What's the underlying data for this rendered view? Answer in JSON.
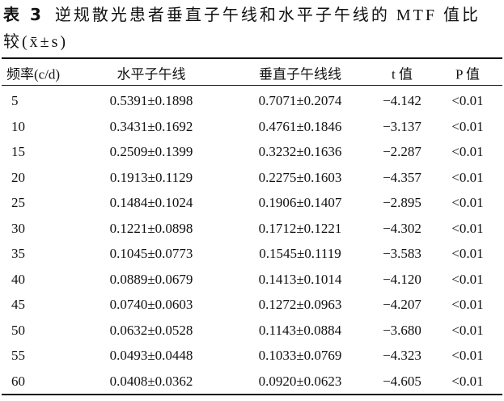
{
  "caption": {
    "label": "表 3",
    "text": "逆规散光患者垂直子午线和水平子午线的 MTF 值比较",
    "stat": "(x̄±s)"
  },
  "table": {
    "headers": [
      "频率(c/d)",
      "水平子午线",
      "垂直子午线线",
      "t 值",
      "P 值"
    ],
    "rows": [
      [
        "5",
        "0.5391±0.1898",
        "0.7071±0.2074",
        "−4.142",
        "<0.01"
      ],
      [
        "10",
        "0.3431±0.1692",
        "0.4761±0.1846",
        "−3.137",
        "<0.01"
      ],
      [
        "15",
        "0.2509±0.1399",
        "0.3232±0.1636",
        "−2.287",
        "<0.01"
      ],
      [
        "20",
        "0.1913±0.1129",
        "0.2275±0.1603",
        "−4.357",
        "<0.01"
      ],
      [
        "25",
        "0.1484±0.1024",
        "0.1906±0.1407",
        "−2.895",
        "<0.01"
      ],
      [
        "30",
        "0.1221±0.0898",
        "0.1712±0.1221",
        "−4.302",
        "<0.01"
      ],
      [
        "35",
        "0.1045±0.0773",
        "0.1545±0.1119",
        "−3.583",
        "<0.01"
      ],
      [
        "40",
        "0.0889±0.0679",
        "0.1413±0.1014",
        "−4.120",
        "<0.01"
      ],
      [
        "45",
        "0.0740±0.0603",
        "0.1272±0.0963",
        "−4.207",
        "<0.01"
      ],
      [
        "50",
        "0.0632±0.0528",
        "0.1143±0.0884",
        "−3.680",
        "<0.01"
      ],
      [
        "55",
        "0.0493±0.0448",
        "0.1033±0.0769",
        "−4.323",
        "<0.01"
      ],
      [
        "60",
        "0.0408±0.0362",
        "0.0920±0.0623",
        "−4.605",
        "<0.01"
      ]
    ]
  }
}
